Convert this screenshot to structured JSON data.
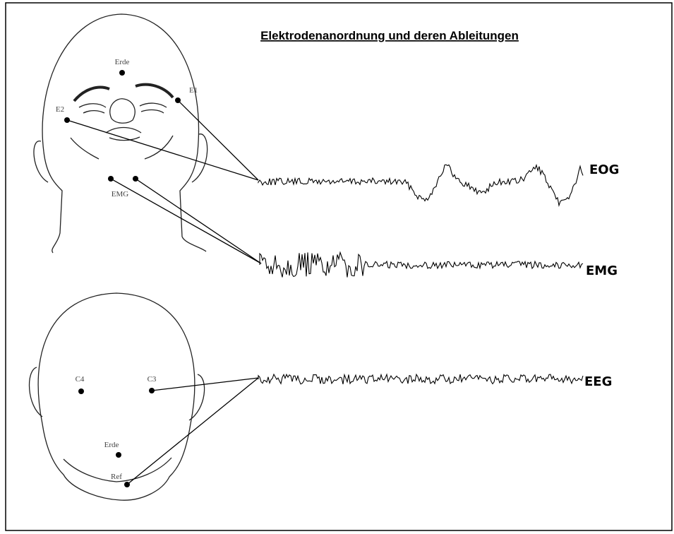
{
  "title": "Elektrodenanordnung und deren Ableitungen",
  "face": {
    "electrodes": [
      {
        "label": "Erde"
      },
      {
        "label": "E1"
      },
      {
        "label": "E2"
      },
      {
        "label": "EMG"
      }
    ]
  },
  "head": {
    "electrodes": [
      {
        "label": "C4"
      },
      {
        "label": "C3"
      },
      {
        "label": "Erde"
      },
      {
        "label": "Ref"
      }
    ]
  },
  "signals": [
    "EOG",
    "EMG",
    "EEG"
  ]
}
